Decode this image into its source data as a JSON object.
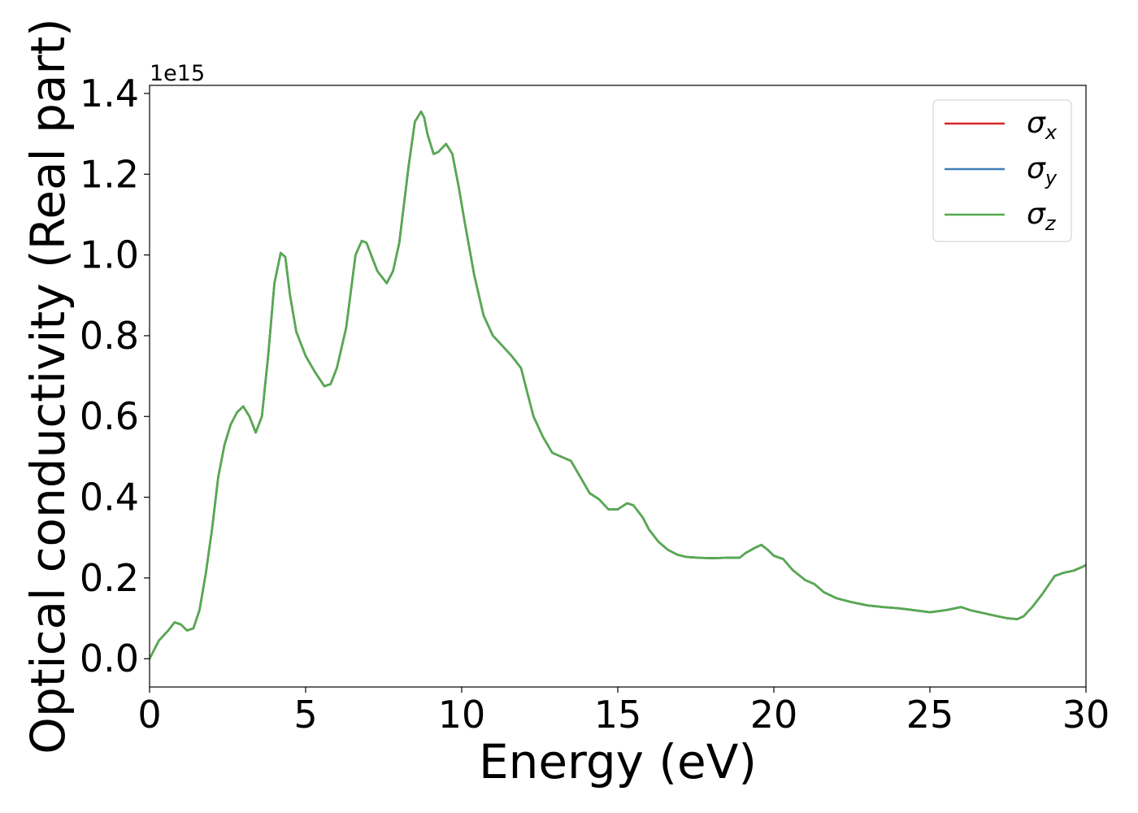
{
  "chart_data": {
    "type": "line",
    "title": "",
    "xlabel": "Energy (eV)",
    "ylabel": "Optical conductivity (Real part)",
    "y_offset_text": "1e15",
    "y_multiplier": 1000000000000000.0,
    "xlim": [
      0,
      30
    ],
    "ylim": [
      -0.07,
      1.42
    ],
    "xticks": [
      0,
      5,
      10,
      15,
      20,
      25,
      30
    ],
    "xtick_labels": [
      "0",
      "5",
      "10",
      "15",
      "20",
      "25",
      "30"
    ],
    "yticks": [
      0.0,
      0.2,
      0.4,
      0.6,
      0.8,
      1.0,
      1.2,
      1.4
    ],
    "ytick_labels": [
      "0.0",
      "0.2",
      "0.4",
      "0.6",
      "0.8",
      "1.0",
      "1.2",
      "1.4"
    ],
    "grid": false,
    "legend_position": "top-right",
    "x": [
      0,
      0.3,
      0.6,
      0.8,
      1.0,
      1.2,
      1.4,
      1.6,
      1.8,
      2.0,
      2.2,
      2.4,
      2.6,
      2.8,
      3.0,
      3.2,
      3.4,
      3.6,
      3.8,
      4.0,
      4.2,
      4.35,
      4.5,
      4.7,
      5.0,
      5.3,
      5.6,
      5.8,
      6.0,
      6.3,
      6.6,
      6.8,
      6.95,
      7.1,
      7.3,
      7.6,
      7.8,
      8.0,
      8.3,
      8.5,
      8.7,
      8.8,
      8.9,
      9.1,
      9.25,
      9.5,
      9.7,
      9.9,
      10.1,
      10.4,
      10.7,
      11.0,
      11.3,
      11.6,
      11.9,
      12.1,
      12.3,
      12.6,
      12.9,
      13.2,
      13.5,
      13.8,
      14.1,
      14.4,
      14.7,
      15.0,
      15.3,
      15.5,
      15.8,
      16.0,
      16.3,
      16.6,
      16.9,
      17.2,
      17.6,
      18.0,
      18.5,
      18.9,
      19.1,
      19.4,
      19.6,
      19.8,
      20.0,
      20.3,
      20.6,
      21.0,
      21.3,
      21.6,
      22.0,
      22.5,
      23.0,
      23.5,
      24.0,
      24.5,
      25.0,
      25.5,
      26.0,
      26.3,
      26.6,
      27.0,
      27.5,
      27.8,
      28.0,
      28.3,
      28.6,
      29.0,
      29.3,
      29.6,
      29.9,
      30.0
    ],
    "series": [
      {
        "name": "σx",
        "label_base": "σ",
        "label_sub": "x",
        "color": "#d62728",
        "values": [
          0.0,
          0.045,
          0.07,
          0.09,
          0.085,
          0.07,
          0.075,
          0.12,
          0.21,
          0.32,
          0.45,
          0.53,
          0.58,
          0.61,
          0.625,
          0.6,
          0.56,
          0.6,
          0.75,
          0.93,
          1.005,
          0.995,
          0.9,
          0.81,
          0.75,
          0.71,
          0.675,
          0.68,
          0.72,
          0.82,
          1.0,
          1.035,
          1.03,
          1.0,
          0.96,
          0.93,
          0.96,
          1.03,
          1.22,
          1.33,
          1.355,
          1.34,
          1.3,
          1.25,
          1.255,
          1.275,
          1.25,
          1.17,
          1.08,
          0.95,
          0.85,
          0.8,
          0.775,
          0.75,
          0.72,
          0.66,
          0.6,
          0.55,
          0.51,
          0.5,
          0.49,
          0.45,
          0.41,
          0.395,
          0.37,
          0.37,
          0.385,
          0.38,
          0.35,
          0.32,
          0.29,
          0.27,
          0.258,
          0.252,
          0.25,
          0.249,
          0.25,
          0.25,
          0.262,
          0.275,
          0.282,
          0.27,
          0.255,
          0.247,
          0.22,
          0.195,
          0.185,
          0.165,
          0.15,
          0.14,
          0.132,
          0.128,
          0.125,
          0.12,
          0.115,
          0.12,
          0.128,
          0.12,
          0.115,
          0.108,
          0.1,
          0.098,
          0.105,
          0.13,
          0.16,
          0.205,
          0.213,
          0.218,
          0.228,
          0.232
        ]
      },
      {
        "name": "σy",
        "label_base": "σ",
        "label_sub": "y",
        "color": "#3d7db5",
        "values": [
          0.0,
          0.045,
          0.07,
          0.09,
          0.085,
          0.07,
          0.075,
          0.12,
          0.21,
          0.32,
          0.45,
          0.53,
          0.58,
          0.61,
          0.625,
          0.6,
          0.56,
          0.6,
          0.75,
          0.93,
          1.005,
          0.995,
          0.9,
          0.81,
          0.75,
          0.71,
          0.675,
          0.68,
          0.72,
          0.82,
          1.0,
          1.035,
          1.03,
          1.0,
          0.96,
          0.93,
          0.96,
          1.03,
          1.22,
          1.33,
          1.355,
          1.34,
          1.3,
          1.25,
          1.255,
          1.275,
          1.25,
          1.17,
          1.08,
          0.95,
          0.85,
          0.8,
          0.775,
          0.75,
          0.72,
          0.66,
          0.6,
          0.55,
          0.51,
          0.5,
          0.49,
          0.45,
          0.41,
          0.395,
          0.37,
          0.37,
          0.385,
          0.38,
          0.35,
          0.32,
          0.29,
          0.27,
          0.258,
          0.252,
          0.25,
          0.249,
          0.25,
          0.25,
          0.262,
          0.275,
          0.282,
          0.27,
          0.255,
          0.247,
          0.22,
          0.195,
          0.185,
          0.165,
          0.15,
          0.14,
          0.132,
          0.128,
          0.125,
          0.12,
          0.115,
          0.12,
          0.128,
          0.12,
          0.115,
          0.108,
          0.1,
          0.098,
          0.105,
          0.13,
          0.16,
          0.205,
          0.213,
          0.218,
          0.228,
          0.232
        ]
      },
      {
        "name": "σz",
        "label_base": "σ",
        "label_sub": "z",
        "color": "#55ab4e",
        "values": [
          0.0,
          0.045,
          0.07,
          0.09,
          0.085,
          0.07,
          0.075,
          0.12,
          0.21,
          0.32,
          0.45,
          0.53,
          0.58,
          0.61,
          0.625,
          0.6,
          0.56,
          0.6,
          0.75,
          0.93,
          1.005,
          0.995,
          0.9,
          0.81,
          0.75,
          0.71,
          0.675,
          0.68,
          0.72,
          0.82,
          1.0,
          1.035,
          1.03,
          1.0,
          0.96,
          0.93,
          0.96,
          1.03,
          1.22,
          1.33,
          1.355,
          1.34,
          1.3,
          1.25,
          1.255,
          1.275,
          1.25,
          1.17,
          1.08,
          0.95,
          0.85,
          0.8,
          0.775,
          0.75,
          0.72,
          0.66,
          0.6,
          0.55,
          0.51,
          0.5,
          0.49,
          0.45,
          0.41,
          0.395,
          0.37,
          0.37,
          0.385,
          0.38,
          0.35,
          0.32,
          0.29,
          0.27,
          0.258,
          0.252,
          0.25,
          0.249,
          0.25,
          0.25,
          0.262,
          0.275,
          0.282,
          0.27,
          0.255,
          0.247,
          0.22,
          0.195,
          0.185,
          0.165,
          0.15,
          0.14,
          0.132,
          0.128,
          0.125,
          0.12,
          0.115,
          0.12,
          0.128,
          0.12,
          0.115,
          0.108,
          0.1,
          0.098,
          0.105,
          0.13,
          0.16,
          0.205,
          0.213,
          0.218,
          0.228,
          0.232
        ]
      }
    ]
  }
}
